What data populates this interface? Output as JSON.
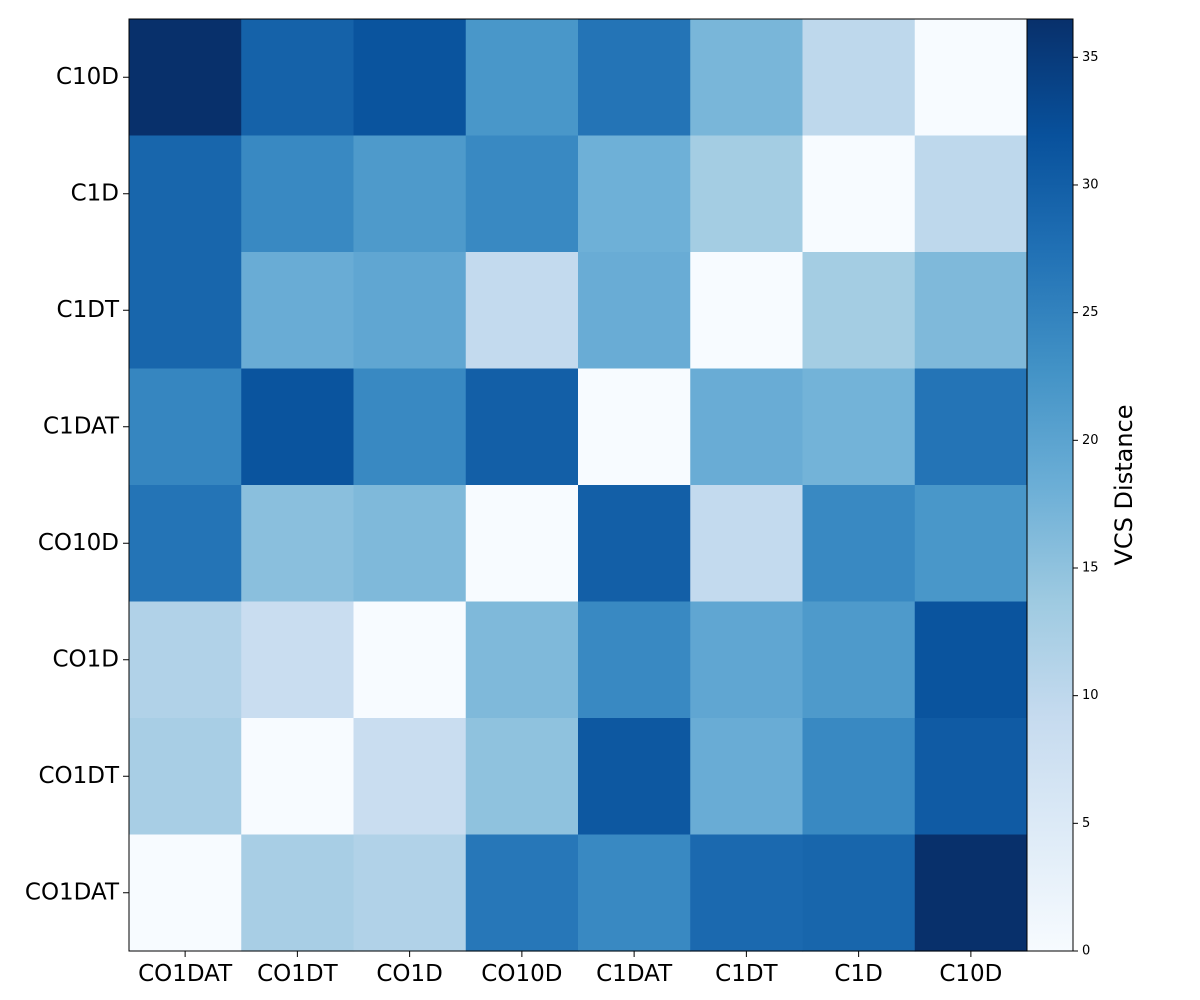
{
  "chart_data": {
    "type": "heatmap",
    "title": "",
    "x_categories": [
      "CO1DAT",
      "CO1DT",
      "CO1D",
      "CO10D",
      "C1DAT",
      "C1DT",
      "C1D",
      "C10D"
    ],
    "y_categories": [
      "C10D",
      "C1D",
      "C1DT",
      "C1DAT",
      "CO10D",
      "CO1D",
      "CO1DT",
      "CO1DAT"
    ],
    "values": [
      [
        36.5,
        29.5,
        31.5,
        22.0,
        27.0,
        17.0,
        10.0,
        0.0
      ],
      [
        29.0,
        24.0,
        21.5,
        24.0,
        18.0,
        13.0,
        0.0,
        10.0
      ],
      [
        29.0,
        18.5,
        19.5,
        9.5,
        18.5,
        0.0,
        13.0,
        16.5
      ],
      [
        24.5,
        31.5,
        24.0,
        30.0,
        0.0,
        18.5,
        17.5,
        27.0
      ],
      [
        27.0,
        15.5,
        16.5,
        0.0,
        30.0,
        9.5,
        24.0,
        22.0
      ],
      [
        11.5,
        8.5,
        0.0,
        16.5,
        24.0,
        19.5,
        21.5,
        31.5
      ],
      [
        12.5,
        0.0,
        8.5,
        15.0,
        31.0,
        18.5,
        24.0,
        30.5
      ],
      [
        0.0,
        12.5,
        11.5,
        26.5,
        24.0,
        28.5,
        29.0,
        36.5
      ]
    ],
    "colorbar": {
      "label": "VCS Distance",
      "ticks": [
        0,
        5,
        10,
        15,
        20,
        25,
        30,
        35
      ],
      "range": [
        0,
        36.5
      ],
      "colormap": "Blues"
    },
    "colormap_stops": [
      "#f7fbff",
      "#deebf7",
      "#c6dbef",
      "#9ecae1",
      "#6baed6",
      "#4292c6",
      "#2171b5",
      "#08519c",
      "#08306b"
    ]
  }
}
